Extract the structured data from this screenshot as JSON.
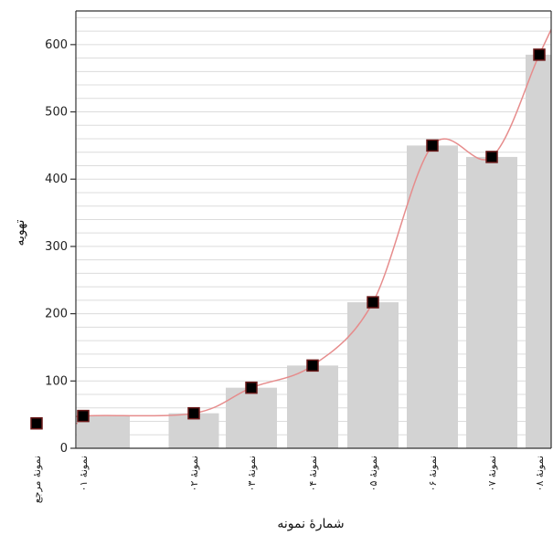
{
  "chart_data": {
    "type": "bar",
    "title": "",
    "xlabel": "شمارهٔ نمونه",
    "ylabel": "تهویه",
    "ylim": [
      0,
      650
    ],
    "yticks": [
      0,
      100,
      200,
      300,
      400,
      500,
      600
    ],
    "grid": true,
    "categories": [
      "نمونهٔ مرجع",
      "نمونهٔ ۰۱",
      "نمونهٔ ۰۲",
      "نمونهٔ ۰۳",
      "نمونهٔ ۰۴",
      "نمونهٔ ۰۵",
      "نمونهٔ ۰۶",
      "نمونهٔ ۰۷",
      "نمونهٔ ۰۸"
    ],
    "values": [
      37,
      48,
      52,
      90,
      123,
      217,
      450,
      433,
      585
    ],
    "overlay_line": {
      "type": "line",
      "smooth": true,
      "values": [
        37,
        48,
        52,
        90,
        123,
        217,
        450,
        433,
        585
      ]
    },
    "colors": {
      "bar": "#d3d3d3",
      "line": "#e68c8c",
      "marker": "#000000",
      "marker_border": "#6b1a1a",
      "grid": "#dcdcdc"
    }
  }
}
